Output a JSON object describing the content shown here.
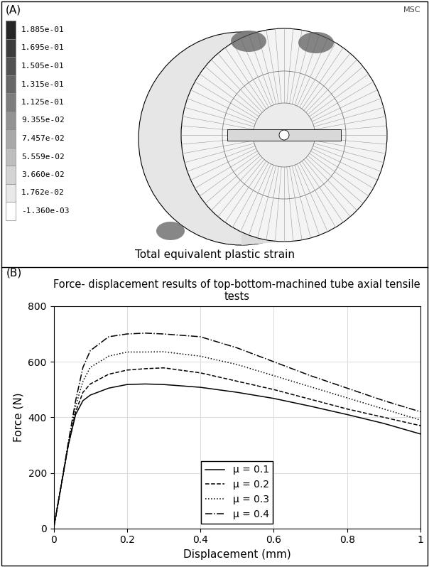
{
  "panel_a": {
    "label": "(A)",
    "logo": "MSC",
    "caption": "Total equivalent plastic strain",
    "colorbar": {
      "ticks": [
        {
          "value": 0.1885,
          "label": "1.885e-01"
        },
        {
          "value": 0.1695,
          "label": "1.695e-01"
        },
        {
          "value": 0.1505,
          "label": "1.505e-01"
        },
        {
          "value": 0.1315,
          "label": "1.315e-01"
        },
        {
          "value": 0.1125,
          "label": "1.125e-01"
        },
        {
          "value": 0.09355,
          "label": "9.355e-02"
        },
        {
          "value": 0.07457,
          "label": "7.457e-02"
        },
        {
          "value": 0.05559,
          "label": "5.559e-02"
        },
        {
          "value": 0.0366,
          "label": "3.660e-02"
        },
        {
          "value": 0.01762,
          "label": "1.762e-02"
        },
        {
          "value": -0.00136,
          "label": "-1.360e-03"
        }
      ]
    }
  },
  "chart_data": {
    "label": "(B)",
    "type": "line",
    "title": "Force- displacement results of top-bottom-machined tube axial tensile tests",
    "x_label": "Displacement (mm)",
    "y_label": "Force (N)",
    "x": [
      0,
      0.02,
      0.04,
      0.06,
      0.08,
      0.1,
      0.15,
      0.2,
      0.25,
      0.3,
      0.4,
      0.5,
      0.6,
      0.7,
      0.8,
      0.9,
      1.0
    ],
    "series": [
      {
        "name": "μ = 0.1",
        "color": "black",
        "line_style": "solid",
        "values": [
          0,
          150,
          300,
          410,
          460,
          480,
          505,
          518,
          520,
          518,
          508,
          490,
          468,
          440,
          410,
          378,
          340
        ]
      },
      {
        "name": "μ = 0.2",
        "color": "black",
        "line_style": "dashed",
        "values": [
          0,
          150,
          300,
          420,
          490,
          520,
          555,
          570,
          575,
          578,
          560,
          530,
          500,
          465,
          430,
          400,
          370
        ]
      },
      {
        "name": "μ = 0.3",
        "color": "black",
        "line_style": "dotted",
        "values": [
          0,
          150,
          305,
          440,
          530,
          580,
          620,
          635,
          635,
          636,
          620,
          590,
          550,
          510,
          470,
          430,
          390
        ]
      },
      {
        "name": "μ = 0.4",
        "color": "black",
        "line_style": "dashdot",
        "values": [
          0,
          150,
          310,
          460,
          580,
          640,
          690,
          700,
          703,
          700,
          690,
          650,
          600,
          550,
          505,
          460,
          420
        ]
      }
    ],
    "xlim": [
      0,
      1
    ],
    "ylim": [
      0,
      800
    ],
    "xticks": [
      0,
      0.2,
      0.4,
      0.6,
      0.8,
      1
    ],
    "yticks": [
      0,
      200,
      400,
      600,
      800
    ],
    "grid": true,
    "legend": "lower center"
  }
}
